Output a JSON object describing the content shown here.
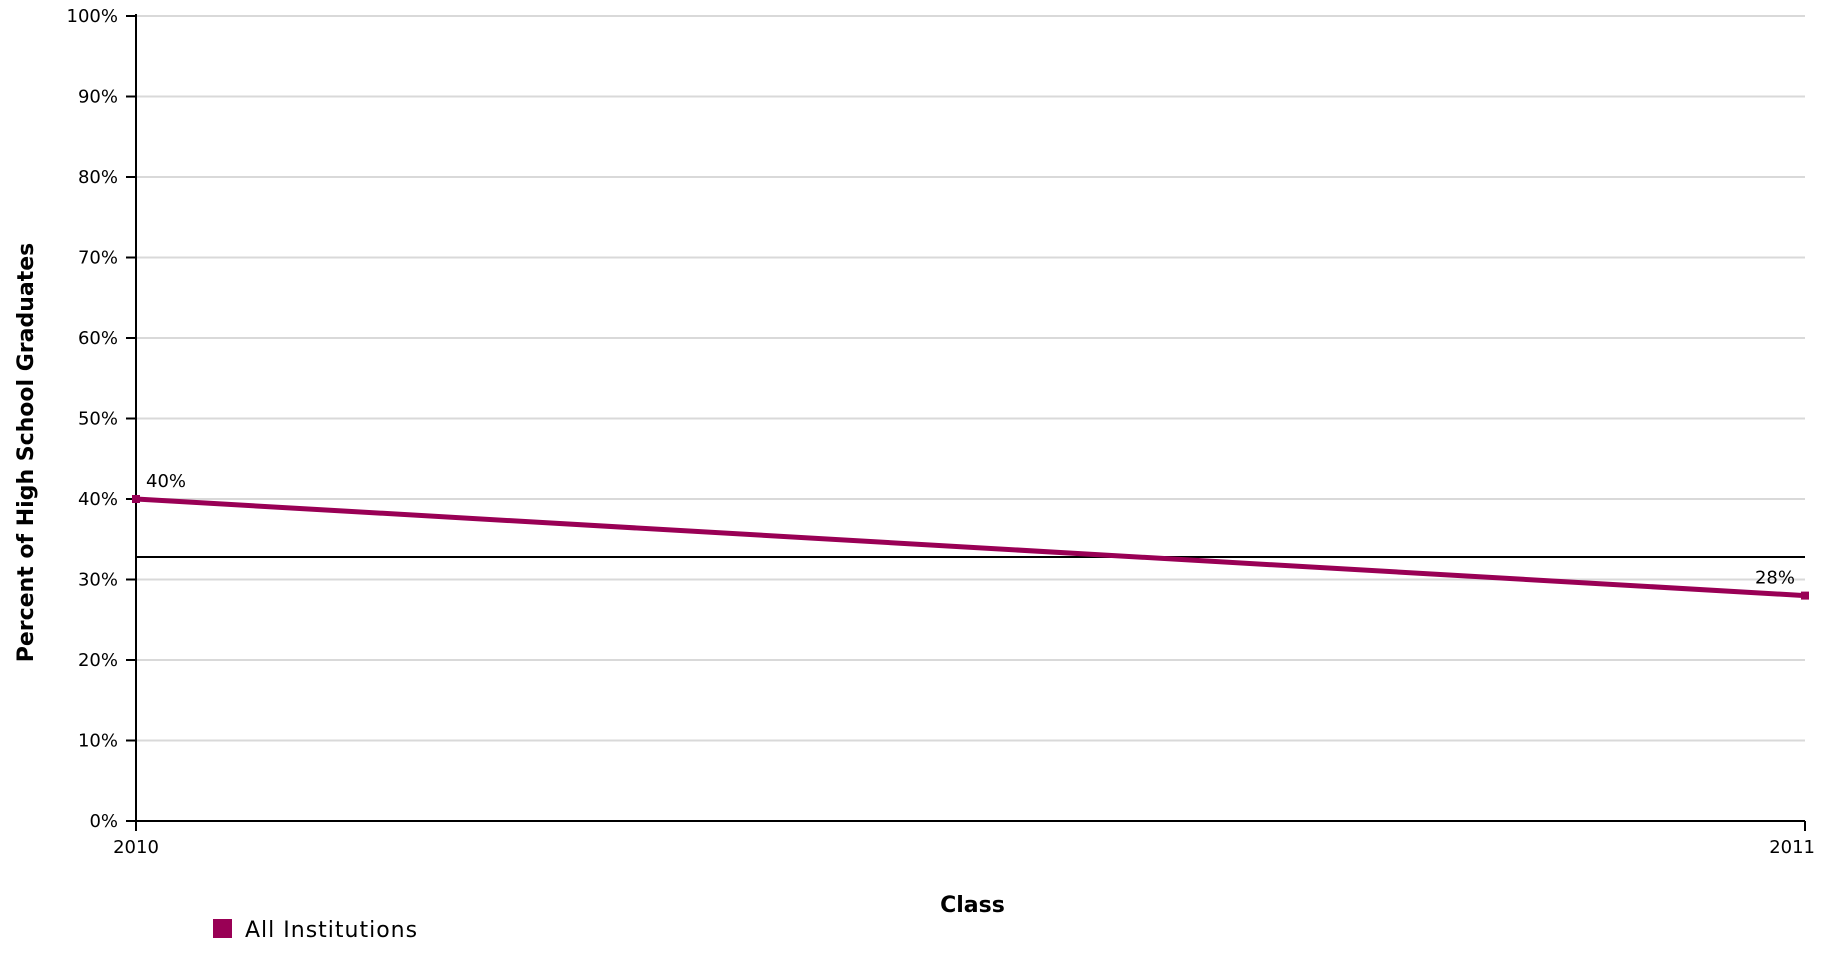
{
  "chart_data": {
    "type": "line",
    "x": [
      "2010",
      "2011"
    ],
    "series": [
      {
        "name": "All Institutions",
        "values": [
          40,
          28
        ],
        "labels": [
          "40%",
          "28%"
        ],
        "color": "#990055"
      }
    ],
    "reference_line": {
      "value": 32.8,
      "color": "#000000"
    },
    "xlabel": "Class",
    "ylabel": "Percent of High School Graduates",
    "ylim": [
      0,
      100
    ],
    "y_ticks": [
      0,
      10,
      20,
      30,
      40,
      50,
      60,
      70,
      80,
      90,
      100
    ],
    "y_tick_labels": [
      "0%",
      "10%",
      "20%",
      "30%",
      "40%",
      "50%",
      "60%",
      "70%",
      "80%",
      "90%",
      "100%"
    ],
    "grid": true,
    "grid_color": "#d9d9d9",
    "legend_position": "bottom-left"
  }
}
